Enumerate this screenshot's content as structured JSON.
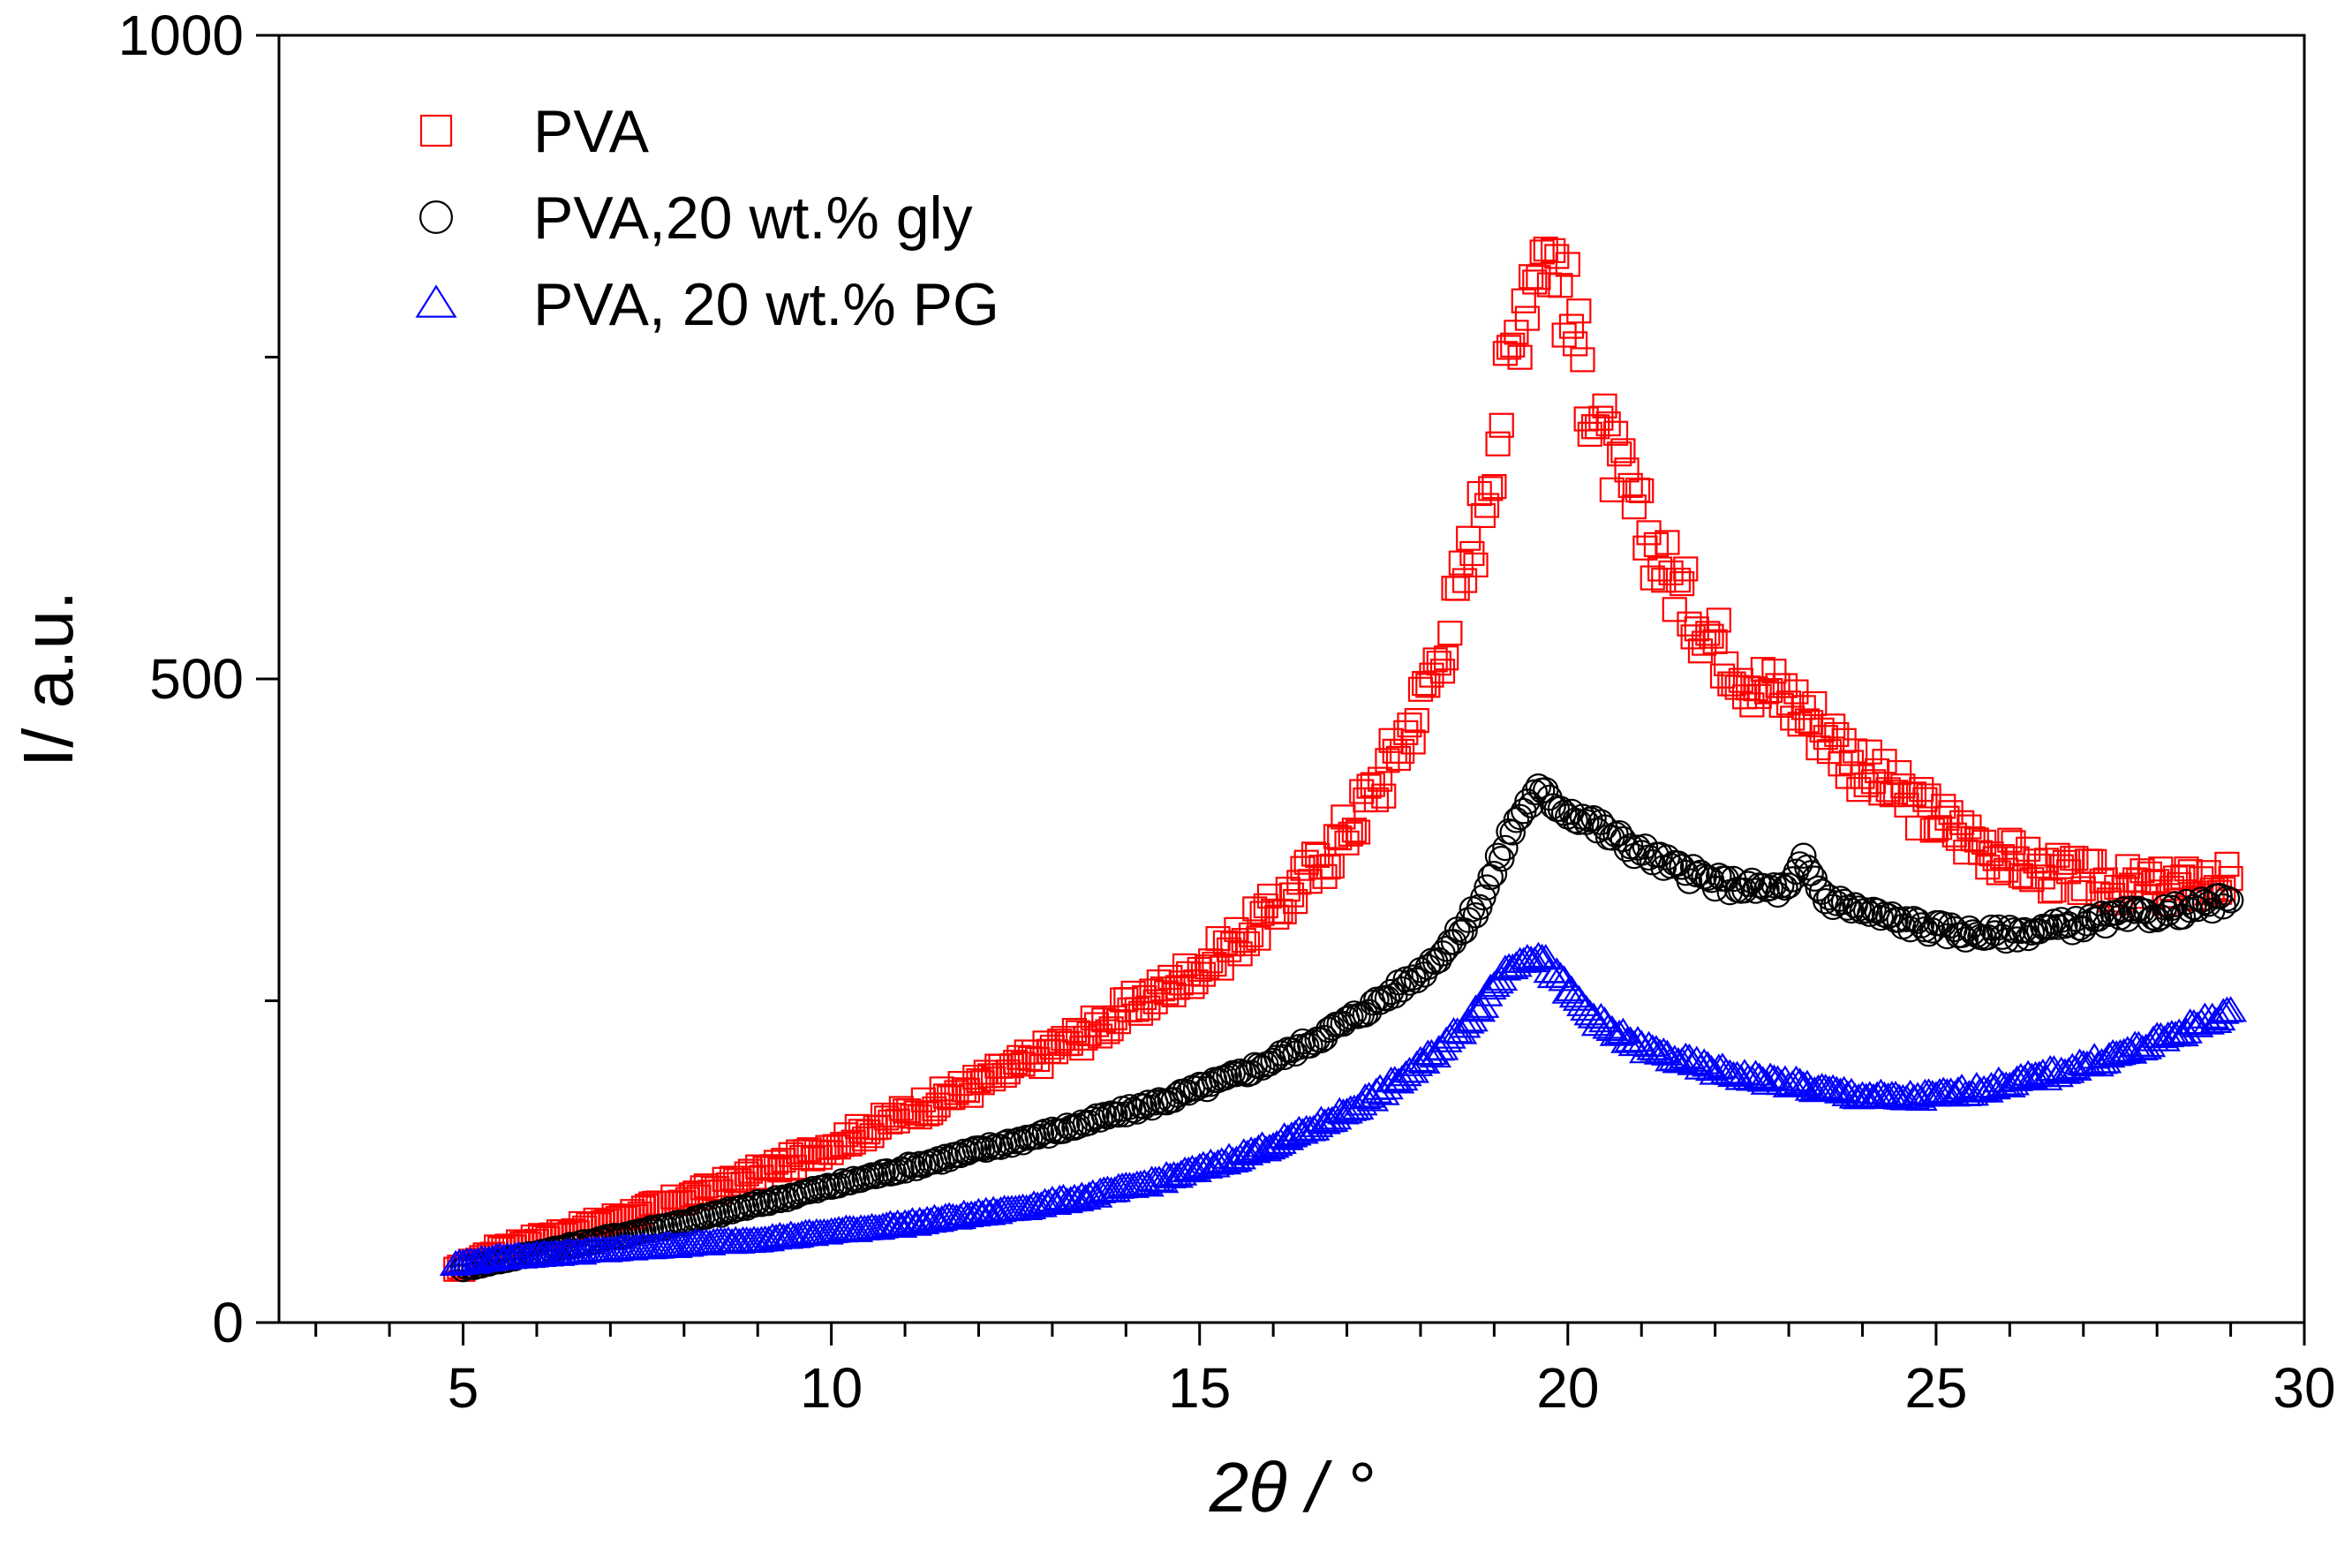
{
  "chart_data": {
    "type": "scatter",
    "title": "",
    "xlabel": "2θ / °",
    "ylabel": "I/ a.u.",
    "xlim": [
      2.5,
      30
    ],
    "ylim": [
      0,
      1000
    ],
    "x_ticks": [
      5,
      10,
      15,
      20,
      25,
      30
    ],
    "y_ticks": [
      0,
      500,
      1000
    ],
    "legend_position": "top-left",
    "series": [
      {
        "name": "PVA",
        "marker": "square",
        "color": "#ff0000",
        "points": [
          [
            4.9,
            40
          ],
          [
            5.5,
            58
          ],
          [
            6.0,
            65
          ],
          [
            6.5,
            72
          ],
          [
            7.0,
            80
          ],
          [
            7.5,
            88
          ],
          [
            8.0,
            96
          ],
          [
            8.5,
            106
          ],
          [
            9.0,
            116
          ],
          [
            9.5,
            126
          ],
          [
            10.0,
            138
          ],
          [
            10.5,
            150
          ],
          [
            11.0,
            162
          ],
          [
            11.5,
            174
          ],
          [
            12.0,
            186
          ],
          [
            12.5,
            198
          ],
          [
            13.0,
            212
          ],
          [
            13.5,
            226
          ],
          [
            14.0,
            242
          ],
          [
            14.5,
            258
          ],
          [
            15.0,
            276
          ],
          [
            15.5,
            296
          ],
          [
            16.0,
            320
          ],
          [
            16.5,
            348
          ],
          [
            17.0,
            382
          ],
          [
            17.5,
            425
          ],
          [
            18.0,
            480
          ],
          [
            18.5,
            560
          ],
          [
            18.8,
            625
          ],
          [
            19.0,
            680
          ],
          [
            19.2,
            740
          ],
          [
            19.4,
            800
          ],
          [
            19.6,
            835
          ],
          [
            19.8,
            830
          ],
          [
            20.0,
            790
          ],
          [
            20.3,
            720
          ],
          [
            20.6,
            670
          ],
          [
            21.0,
            620
          ],
          [
            21.5,
            570
          ],
          [
            22.0,
            530
          ],
          [
            22.5,
            500
          ],
          [
            23.0,
            485
          ],
          [
            23.5,
            460
          ],
          [
            24.0,
            430
          ],
          [
            24.5,
            410
          ],
          [
            25.0,
            392
          ],
          [
            25.5,
            375
          ],
          [
            26.0,
            360
          ],
          [
            26.5,
            350
          ],
          [
            27.0,
            345
          ],
          [
            27.5,
            340
          ],
          [
            28.0,
            338
          ],
          [
            28.5,
            340
          ],
          [
            29.0,
            345
          ]
        ]
      },
      {
        "name": "PVA,20 wt.% gly",
        "marker": "circle",
        "color": "#000000",
        "points": [
          [
            5.0,
            42
          ],
          [
            5.5,
            48
          ],
          [
            6.0,
            54
          ],
          [
            6.5,
            60
          ],
          [
            7.0,
            66
          ],
          [
            7.5,
            72
          ],
          [
            8.0,
            78
          ],
          [
            8.5,
            85
          ],
          [
            9.0,
            92
          ],
          [
            9.5,
            99
          ],
          [
            10.0,
            106
          ],
          [
            10.5,
            113
          ],
          [
            11.0,
            120
          ],
          [
            11.5,
            127
          ],
          [
            12.0,
            134
          ],
          [
            12.5,
            141
          ],
          [
            13.0,
            148
          ],
          [
            13.5,
            156
          ],
          [
            14.0,
            164
          ],
          [
            14.5,
            172
          ],
          [
            15.0,
            182
          ],
          [
            15.5,
            192
          ],
          [
            16.0,
            204
          ],
          [
            16.5,
            218
          ],
          [
            17.0,
            234
          ],
          [
            17.5,
            252
          ],
          [
            18.0,
            272
          ],
          [
            18.5,
            300
          ],
          [
            18.8,
            326
          ],
          [
            19.0,
            350
          ],
          [
            19.2,
            378
          ],
          [
            19.4,
            400
          ],
          [
            19.6,
            412
          ],
          [
            19.8,
            405
          ],
          [
            20.0,
            398
          ],
          [
            20.3,
            390
          ],
          [
            20.6,
            378
          ],
          [
            21.0,
            366
          ],
          [
            21.5,
            352
          ],
          [
            22.0,
            342
          ],
          [
            22.5,
            338
          ],
          [
            23.0,
            336
          ],
          [
            23.2,
            358
          ],
          [
            23.5,
            330
          ],
          [
            24.0,
            320
          ],
          [
            24.5,
            312
          ],
          [
            25.0,
            306
          ],
          [
            25.5,
            302
          ],
          [
            26.0,
            302
          ],
          [
            26.5,
            306
          ],
          [
            27.0,
            310
          ],
          [
            27.5,
            315
          ],
          [
            28.0,
            318
          ],
          [
            28.5,
            322
          ],
          [
            29.0,
            328
          ]
        ]
      },
      {
        "name": "PVA, 20 wt.% PG",
        "marker": "triangle",
        "color": "#0000ff",
        "points": [
          [
            4.9,
            45
          ],
          [
            5.5,
            50
          ],
          [
            6.0,
            52
          ],
          [
            6.5,
            54
          ],
          [
            7.0,
            56
          ],
          [
            7.5,
            58
          ],
          [
            8.0,
            60
          ],
          [
            8.5,
            62
          ],
          [
            9.0,
            64
          ],
          [
            9.5,
            67
          ],
          [
            10.0,
            70
          ],
          [
            10.5,
            73
          ],
          [
            11.0,
            76
          ],
          [
            11.5,
            80
          ],
          [
            12.0,
            84
          ],
          [
            12.5,
            88
          ],
          [
            13.0,
            93
          ],
          [
            13.5,
            98
          ],
          [
            14.0,
            104
          ],
          [
            14.5,
            111
          ],
          [
            15.0,
            119
          ],
          [
            15.5,
            128
          ],
          [
            16.0,
            138
          ],
          [
            16.5,
            150
          ],
          [
            17.0,
            164
          ],
          [
            17.5,
            180
          ],
          [
            18.0,
            200
          ],
          [
            18.5,
            225
          ],
          [
            18.8,
            245
          ],
          [
            19.0,
            262
          ],
          [
            19.2,
            276
          ],
          [
            19.4,
            285
          ],
          [
            19.6,
            284
          ],
          [
            19.8,
            272
          ],
          [
            20.0,
            258
          ],
          [
            20.3,
            240
          ],
          [
            20.6,
            226
          ],
          [
            21.0,
            214
          ],
          [
            21.5,
            204
          ],
          [
            22.0,
            196
          ],
          [
            22.5,
            190
          ],
          [
            23.0,
            186
          ],
          [
            23.5,
            180
          ],
          [
            24.0,
            176
          ],
          [
            24.5,
            174
          ],
          [
            25.0,
            176
          ],
          [
            25.5,
            180
          ],
          [
            26.0,
            186
          ],
          [
            26.5,
            192
          ],
          [
            27.0,
            200
          ],
          [
            27.5,
            208
          ],
          [
            28.0,
            218
          ],
          [
            28.5,
            230
          ],
          [
            29.0,
            242
          ]
        ]
      }
    ]
  }
}
